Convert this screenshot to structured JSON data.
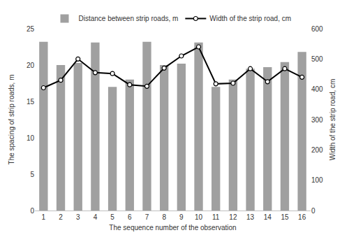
{
  "chart_data": {
    "type": "bar",
    "x_label": "The sequence number of the observation",
    "y_label": "The spacing of strip roads, m",
    "y2_label": "Width of the strip road, cm",
    "categories": [
      "1",
      "2",
      "3",
      "4",
      "5",
      "6",
      "7",
      "8",
      "9",
      "10",
      "11",
      "12",
      "13",
      "14",
      "15",
      "16"
    ],
    "series": [
      {
        "name": "Distance between strip roads, m",
        "type": "bar",
        "color": "#a0a0a0",
        "values": [
          23.2,
          20.0,
          20.3,
          23.1,
          17.0,
          18.0,
          23.2,
          20.0,
          20.2,
          23.1,
          17.0,
          18.0,
          19.5,
          19.7,
          20.4,
          21.8
        ]
      },
      {
        "name": "Width of the strip road, cm",
        "type": "line",
        "axis": "y2",
        "color": "#000000",
        "marker": "circle",
        "line_style": "solid",
        "values": [
          405,
          430,
          500,
          455,
          452,
          415,
          410,
          470,
          510,
          540,
          418,
          420,
          468,
          425,
          468,
          440
        ]
      }
    ],
    "ylim": [
      0,
      25
    ],
    "yticks": [
      0,
      5,
      10,
      15,
      20,
      25
    ],
    "y2lim": [
      0,
      600
    ],
    "y2ticks": [
      0,
      100,
      200,
      300,
      400,
      500,
      600
    ],
    "grid": false,
    "legend": "top"
  }
}
